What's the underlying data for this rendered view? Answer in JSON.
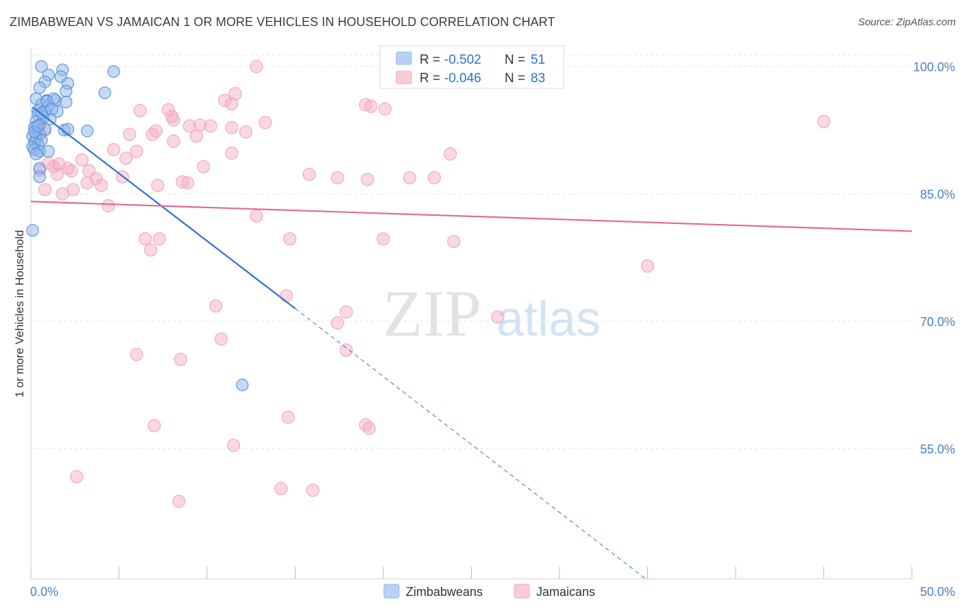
{
  "title": "ZIMBABWEAN VS JAMAICAN 1 OR MORE VEHICLES IN HOUSEHOLD CORRELATION CHART",
  "source": "Source: ZipAtlas.com",
  "watermark": {
    "zip": "ZIP",
    "atlas": "atlas"
  },
  "colors": {
    "blue": "#8fb6ec",
    "blue_line": "#2f6fd0",
    "pink": "#f2a8c0",
    "pink_line": "#e06a94",
    "grid": "#e2e2e2",
    "tick_text": "#4a7ec8"
  },
  "chart_data": {
    "type": "scatter",
    "title": "ZIMBABWEAN VS JAMAICAN 1 OR MORE VEHICLES IN HOUSEHOLD CORRELATION CHART",
    "xlabel": "",
    "ylabel": "1 or more Vehicles in Household",
    "xlim": [
      0,
      50
    ],
    "ylim": [
      40,
      101.5
    ],
    "x_tick_labels": [
      "0.0%",
      "50.0%"
    ],
    "y_ticks": [
      55,
      70,
      85,
      100
    ],
    "y_tick_labels": [
      "55.0%",
      "70.0%",
      "85.0%",
      "100.0%"
    ],
    "grid": true,
    "legend_placement": "top-center",
    "stats": [
      {
        "r_label": "R = ",
        "r_value": "-0.502",
        "n_label": "N = ",
        "n_value": "51"
      },
      {
        "r_label": "R = ",
        "r_value": "-0.046",
        "n_label": "N = ",
        "n_value": "83"
      }
    ],
    "series": [
      {
        "name": "Zimbabweans",
        "color": "#8fb6ec",
        "trend": {
          "x0": 0.1,
          "y0": 95.2,
          "x1": 15.0,
          "y1": 71.5,
          "dash_x1": 35.0,
          "dash_y1": 39.5
        },
        "points": [
          [
            0.6,
            100.0
          ],
          [
            1.8,
            99.6
          ],
          [
            4.7,
            99.4
          ],
          [
            1.0,
            99.0
          ],
          [
            1.7,
            98.8
          ],
          [
            0.8,
            98.2
          ],
          [
            2.1,
            98.0
          ],
          [
            0.5,
            97.5
          ],
          [
            2.0,
            97.1
          ],
          [
            4.2,
            96.9
          ],
          [
            0.3,
            96.2
          ],
          [
            0.9,
            96.0
          ],
          [
            1.4,
            96.0
          ],
          [
            2.0,
            95.8
          ],
          [
            0.6,
            95.5
          ],
          [
            1.0,
            95.4
          ],
          [
            0.4,
            94.8
          ],
          [
            0.8,
            94.7
          ],
          [
            1.5,
            94.7
          ],
          [
            0.4,
            94.3
          ],
          [
            0.7,
            94.0
          ],
          [
            1.1,
            93.8
          ],
          [
            0.3,
            93.5
          ],
          [
            0.5,
            93.1
          ],
          [
            0.2,
            92.8
          ],
          [
            0.8,
            92.6
          ],
          [
            1.9,
            92.5
          ],
          [
            3.2,
            92.4
          ],
          [
            2.1,
            92.6
          ],
          [
            0.3,
            92.1
          ],
          [
            0.5,
            92.0
          ],
          [
            0.1,
            91.8
          ],
          [
            0.3,
            91.6
          ],
          [
            0.6,
            91.3
          ],
          [
            0.2,
            91.0
          ],
          [
            0.4,
            90.8
          ],
          [
            0.1,
            90.5
          ],
          [
            0.2,
            90.2
          ],
          [
            0.5,
            90.0
          ],
          [
            1.0,
            90.0
          ],
          [
            0.3,
            89.7
          ],
          [
            0.5,
            88.0
          ],
          [
            0.5,
            87.0
          ],
          [
            0.1,
            80.7
          ],
          [
            12.0,
            62.5
          ],
          [
            0.2,
            92.3
          ],
          [
            0.9,
            95.9
          ],
          [
            1.3,
            96.2
          ],
          [
            0.6,
            94.5
          ],
          [
            1.2,
            95.0
          ],
          [
            0.4,
            93.0
          ]
        ]
      },
      {
        "name": "Jamaicans",
        "color": "#f2a8c0",
        "trend": {
          "x0": 0,
          "y0": 84.1,
          "x1": 50,
          "y1": 80.6
        },
        "points": [
          [
            12.8,
            100.0
          ],
          [
            28.0,
            100.0
          ],
          [
            11.6,
            96.8
          ],
          [
            11.0,
            96.0
          ],
          [
            11.4,
            95.6
          ],
          [
            19.0,
            95.5
          ],
          [
            19.3,
            95.3
          ],
          [
            20.1,
            95.0
          ],
          [
            6.2,
            94.8
          ],
          [
            7.8,
            94.9
          ],
          [
            8.0,
            94.1
          ],
          [
            8.1,
            93.7
          ],
          [
            13.3,
            93.4
          ],
          [
            9.0,
            93.0
          ],
          [
            9.6,
            93.1
          ],
          [
            10.2,
            93.0
          ],
          [
            11.4,
            92.8
          ],
          [
            7.1,
            92.4
          ],
          [
            12.2,
            92.3
          ],
          [
            5.6,
            92.0
          ],
          [
            6.9,
            92.0
          ],
          [
            9.4,
            91.8
          ],
          [
            8.1,
            91.2
          ],
          [
            4.7,
            90.2
          ],
          [
            6.0,
            90.0
          ],
          [
            11.4,
            89.8
          ],
          [
            23.8,
            89.7
          ],
          [
            5.4,
            89.2
          ],
          [
            2.9,
            89.0
          ],
          [
            1.0,
            88.6
          ],
          [
            1.6,
            88.5
          ],
          [
            1.3,
            88.2
          ],
          [
            9.8,
            88.2
          ],
          [
            2.1,
            88.0
          ],
          [
            2.3,
            87.7
          ],
          [
            3.3,
            87.7
          ],
          [
            1.5,
            87.3
          ],
          [
            15.8,
            87.3
          ],
          [
            5.2,
            87.0
          ],
          [
            17.4,
            86.9
          ],
          [
            21.5,
            86.9
          ],
          [
            22.9,
            86.9
          ],
          [
            3.7,
            86.8
          ],
          [
            19.1,
            86.7
          ],
          [
            3.2,
            86.3
          ],
          [
            8.6,
            86.4
          ],
          [
            8.9,
            86.3
          ],
          [
            4.0,
            86.0
          ],
          [
            7.2,
            86.0
          ],
          [
            0.8,
            85.5
          ],
          [
            2.4,
            85.5
          ],
          [
            1.8,
            85.0
          ],
          [
            4.4,
            83.6
          ],
          [
            12.8,
            82.4
          ],
          [
            6.5,
            79.7
          ],
          [
            7.3,
            79.7
          ],
          [
            14.7,
            79.7
          ],
          [
            20.0,
            79.7
          ],
          [
            24.0,
            79.4
          ],
          [
            6.8,
            78.4
          ],
          [
            35.0,
            76.5
          ],
          [
            14.5,
            73.0
          ],
          [
            10.5,
            71.8
          ],
          [
            17.4,
            69.8
          ],
          [
            17.9,
            71.1
          ],
          [
            26.5,
            70.5
          ],
          [
            10.8,
            67.9
          ],
          [
            17.9,
            66.6
          ],
          [
            6.0,
            66.1
          ],
          [
            8.5,
            65.5
          ],
          [
            14.6,
            58.7
          ],
          [
            7.0,
            57.7
          ],
          [
            19.0,
            57.8
          ],
          [
            19.2,
            57.4
          ],
          [
            11.5,
            55.4
          ],
          [
            2.6,
            51.7
          ],
          [
            14.2,
            50.3
          ],
          [
            16.0,
            50.1
          ],
          [
            8.4,
            48.8
          ],
          [
            45.0,
            93.5
          ],
          [
            0.3,
            92.9
          ],
          [
            0.8,
            92.5
          ],
          [
            0.5,
            87.8
          ]
        ]
      }
    ]
  }
}
